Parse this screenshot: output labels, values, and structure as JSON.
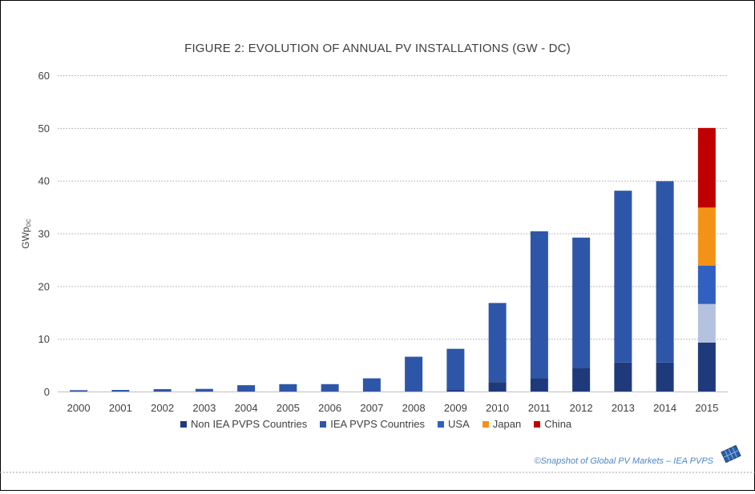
{
  "chart_data": {
    "type": "bar",
    "stacked": true,
    "title": "FIGURE 2: EVOLUTION OF ANNUAL PV INSTALLATIONS (GW - DC)",
    "ylabel": "GWp",
    "ylabel_sub": "DC",
    "xlabel": "",
    "ylim": [
      0,
      60
    ],
    "yticks": [
      "0",
      "10",
      "20",
      "30",
      "40",
      "50",
      "60"
    ],
    "grid": true,
    "legend_position": "bottom",
    "categories": [
      "2000",
      "2001",
      "2002",
      "2003",
      "2004",
      "2005",
      "2006",
      "2007",
      "2008",
      "2009",
      "2010",
      "2011",
      "2012",
      "2013",
      "2014",
      "2015"
    ],
    "series": [
      {
        "name": "Non IEA PVPS Countries",
        "color": "#1f3a7a",
        "values": [
          0,
          0,
          0,
          0,
          0,
          0,
          0,
          0,
          0.1,
          0.3,
          1.8,
          2.5,
          4.5,
          5.5,
          5.5,
          9.3
        ]
      },
      {
        "name": "IEA PVPS Countries",
        "color": "#2e56a8",
        "values": [
          0.25,
          0.3,
          0.45,
          0.5,
          1.2,
          1.4,
          1.4,
          2.5,
          6.5,
          7.8,
          15.0,
          27.9,
          24.7,
          32.6,
          34.4,
          0
        ]
      },
      {
        "name": "",
        "color": "#b4c2e0",
        "values": [
          0,
          0,
          0,
          0,
          0,
          0,
          0,
          0,
          0,
          0,
          0,
          0,
          0,
          0,
          0,
          7.3
        ]
      },
      {
        "name": "USA",
        "color": "#3060c0",
        "values": [
          0,
          0,
          0,
          0,
          0,
          0,
          0,
          0,
          0,
          0,
          0,
          0,
          0,
          0,
          0,
          7.3
        ]
      },
      {
        "name": "Japan",
        "color": "#f29318",
        "values": [
          0,
          0,
          0,
          0,
          0,
          0,
          0,
          0,
          0,
          0,
          0,
          0,
          0,
          0,
          0,
          11.0
        ]
      },
      {
        "name": "China",
        "color": "#c00000",
        "values": [
          0,
          0,
          0,
          0,
          0,
          0,
          0,
          0,
          0,
          0,
          0,
          0,
          0,
          0,
          0,
          15.1
        ]
      }
    ],
    "legend": [
      {
        "label": "Non IEA PVPS Countries",
        "color": "#1f3a7a"
      },
      {
        "label": "IEA PVPS Countries",
        "color": "#2e56a8"
      },
      {
        "label": "USA",
        "color": "#3060c0"
      },
      {
        "label": "Japan",
        "color": "#f29318"
      },
      {
        "label": "China",
        "color": "#c00000"
      }
    ]
  },
  "credit": "©Snapshot of Global PV Markets – IEA PVPS"
}
